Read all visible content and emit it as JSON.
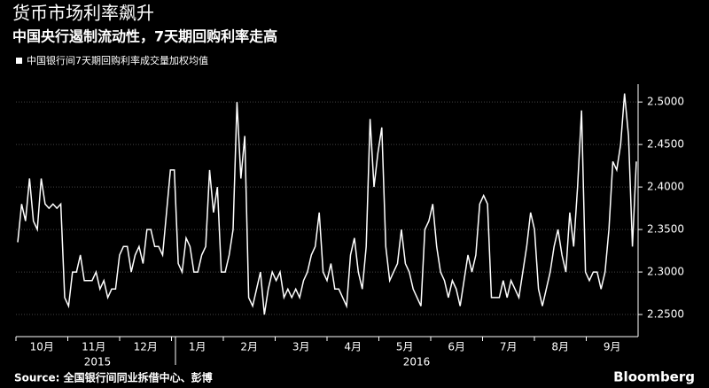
{
  "chart_data": {
    "type": "line",
    "title": "货币市场利率飙升",
    "subtitle": "中国央行遏制流动性，7天期回购利率走高",
    "source": "Source: 全国银行间同业拆借中心、彭博",
    "brand": "Bloomberg",
    "month_labels": [
      "10月",
      "11月",
      "12月",
      "1月",
      "2月",
      "3月",
      "4月",
      "5月",
      "6月",
      "7月",
      "8月",
      "9月"
    ],
    "year_labels": [
      "2015",
      "2016"
    ],
    "ylim": [
      2.224,
      2.521
    ],
    "yticks": [
      {
        "value": 2.25,
        "label": "2.2500"
      },
      {
        "value": 2.3,
        "label": "2.3000"
      },
      {
        "value": 2.35,
        "label": "2.3500"
      },
      {
        "value": 2.4,
        "label": "2.4000"
      },
      {
        "value": 2.45,
        "label": "2.4500"
      },
      {
        "value": 2.5,
        "label": "2.5000"
      }
    ],
    "series": [
      {
        "name": "中国银行间7天期回购利率成交量加权均值",
        "color": "#ffffff",
        "values": [
          2.335,
          2.38,
          2.36,
          2.41,
          2.36,
          2.35,
          2.41,
          2.38,
          2.375,
          2.38,
          2.375,
          2.38,
          2.27,
          2.26,
          2.3,
          2.3,
          2.32,
          2.29,
          2.29,
          2.29,
          2.3,
          2.28,
          2.29,
          2.27,
          2.28,
          2.28,
          2.32,
          2.33,
          2.33,
          2.3,
          2.32,
          2.33,
          2.31,
          2.35,
          2.35,
          2.33,
          2.33,
          2.32,
          2.37,
          2.42,
          2.42,
          2.31,
          2.3,
          2.34,
          2.33,
          2.3,
          2.3,
          2.32,
          2.33,
          2.42,
          2.37,
          2.4,
          2.3,
          2.3,
          2.32,
          2.35,
          2.5,
          2.41,
          2.46,
          2.27,
          2.26,
          2.28,
          2.3,
          2.25,
          2.28,
          2.3,
          2.29,
          2.3,
          2.27,
          2.28,
          2.27,
          2.28,
          2.27,
          2.29,
          2.3,
          2.32,
          2.33,
          2.37,
          2.3,
          2.29,
          2.31,
          2.28,
          2.28,
          2.27,
          2.26,
          2.32,
          2.34,
          2.3,
          2.28,
          2.33,
          2.48,
          2.4,
          2.44,
          2.47,
          2.33,
          2.29,
          2.3,
          2.31,
          2.35,
          2.31,
          2.3,
          2.28,
          2.27,
          2.26,
          2.35,
          2.36,
          2.38,
          2.33,
          2.3,
          2.29,
          2.27,
          2.29,
          2.28,
          2.26,
          2.29,
          2.32,
          2.3,
          2.32,
          2.38,
          2.39,
          2.38,
          2.27,
          2.27,
          2.27,
          2.29,
          2.27,
          2.29,
          2.28,
          2.27,
          2.3,
          2.33,
          2.37,
          2.35,
          2.28,
          2.26,
          2.28,
          2.3,
          2.33,
          2.35,
          2.32,
          2.3,
          2.37,
          2.33,
          2.4,
          2.49,
          2.3,
          2.29,
          2.3,
          2.3,
          2.28,
          2.3,
          2.35,
          2.43,
          2.42,
          2.45,
          2.51,
          2.46,
          2.33,
          2.43
        ]
      }
    ]
  }
}
